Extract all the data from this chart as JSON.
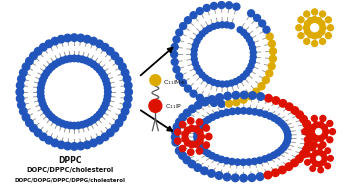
{
  "bg_color": "#ffffff",
  "blue": "#2255bb",
  "yellow": "#ddaa00",
  "red": "#dd1100",
  "gray": "#999999",
  "darkgray": "#555555",
  "text_color": "#111111",
  "label_c11ime": "C$_{11}$IMe",
  "label_c11ip": "C$_{11}$IP",
  "label_line1": "DPPC",
  "label_line2": "DOPC/DPPC/cholesterol",
  "label_line3": "DOPC/DOPG/DPPC/DPPG/cholesterol"
}
